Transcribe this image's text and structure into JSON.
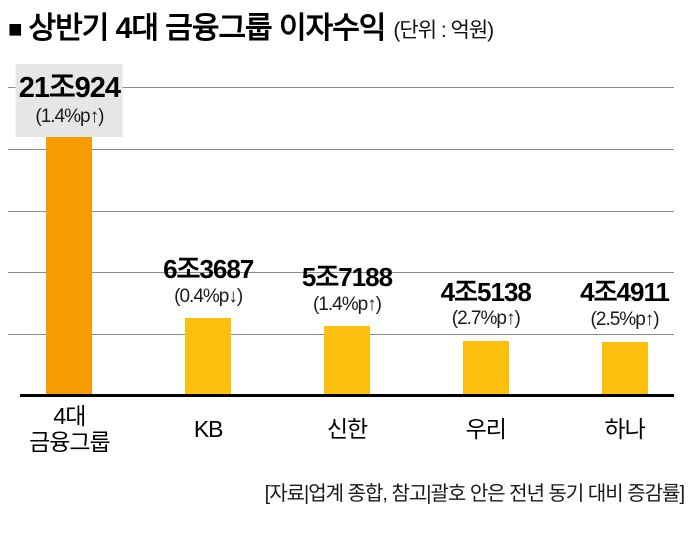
{
  "title": {
    "bullet": "■",
    "text": "상반기 4대 금융그룹 이자수익",
    "unit": "(단위 : 억원)"
  },
  "chart_data": {
    "type": "bar",
    "title": "상반기 4대 금융그룹 이자수익",
    "unit": "억원",
    "categories": [
      "4대 금융그룹",
      "KB",
      "신한",
      "우리",
      "하나"
    ],
    "values": [
      210924,
      63687,
      57188,
      45138,
      44911
    ],
    "value_labels": [
      "21조924",
      "6조3687",
      "5조7188",
      "4조5138",
      "4조4911"
    ],
    "change_labels": [
      "(1.4%p↑)",
      "(0.4%p↓)",
      "(1.4%p↑)",
      "(2.7%p↑)",
      "(2.5%p↑)"
    ],
    "ylim": [
      0,
      250000
    ],
    "gridline_values": [
      50000,
      100000,
      150000,
      200000,
      250000
    ],
    "grid": true,
    "legend": "none",
    "bar_colors": [
      "#f59c00",
      "#fcbf0d",
      "#fcbf0d",
      "#fcbf0d",
      "#fcbf0d"
    ],
    "highlight_box_color": "#e6e6e6"
  },
  "bars": [
    {
      "category": "4대\n금융그룹",
      "value_label": "21조924",
      "change_label": "(1.4%p↑)"
    },
    {
      "category": "KB",
      "value_label": "6조3687",
      "change_label": "(0.4%p↓)"
    },
    {
      "category": "신한",
      "value_label": "5조7188",
      "change_label": "(1.4%p↑)"
    },
    {
      "category": "우리",
      "value_label": "4조5138",
      "change_label": "(2.7%p↑)"
    },
    {
      "category": "하나",
      "value_label": "4조4911",
      "change_label": "(2.5%p↑)"
    }
  ],
  "footnote": "[자료|업계 종합, 참고|괄호 안은 전년 동기 대비 증감률]"
}
